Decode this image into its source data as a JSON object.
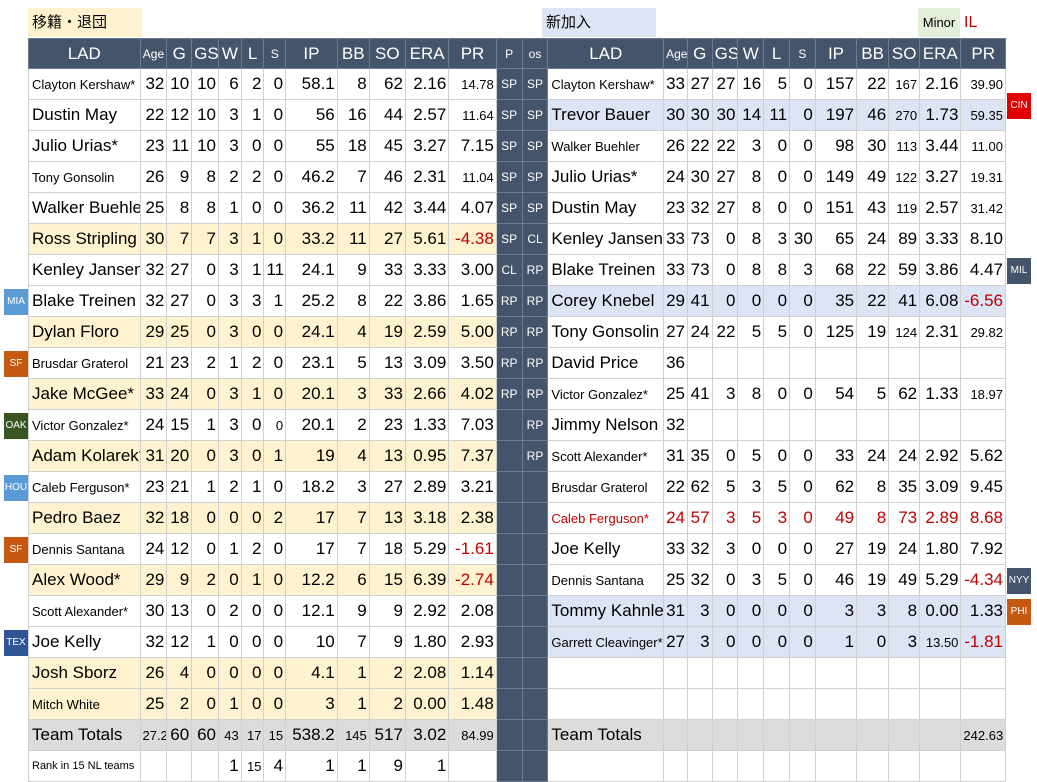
{
  "labels": {
    "left": "移籍・退団",
    "right": "新加入",
    "minor": "Minor",
    "il": "IL"
  },
  "columns": {
    "left": [
      "LAD",
      "Age",
      "G",
      "GS",
      "W",
      "L",
      "S",
      "IP",
      "BB",
      "SO",
      "ERA",
      "PR"
    ],
    "mid": [
      "P",
      "os"
    ],
    "right": [
      "LAD",
      "Age",
      "G",
      "GS",
      "W",
      "L",
      "S",
      "IP",
      "BB",
      "SO",
      "ERA",
      "PR"
    ]
  },
  "rows": [
    {
      "p": "SP",
      "os": "SP",
      "L": [
        "Clayton Kershaw*",
        "32",
        "10",
        "10",
        "6",
        "2",
        "0",
        "58.1",
        "8",
        "62",
        "2.16",
        "14.78"
      ],
      "R": [
        "Clayton Kershaw*",
        "33",
        "27",
        "27",
        "16",
        "5",
        "0",
        "157",
        "22",
        "167",
        "2.16",
        "39.90"
      ]
    },
    {
      "p": "SP",
      "os": "SP",
      "L": [
        "Dustin May",
        "22",
        "12",
        "10",
        "3",
        "1",
        "0",
        "56",
        "16",
        "44",
        "2.57",
        "11.64"
      ],
      "R": [
        "Trevor Bauer",
        "30",
        "30",
        "30",
        "14",
        "11",
        "0",
        "197",
        "46",
        "270",
        "1.73",
        "59.35"
      ]
    },
    {
      "p": "SP",
      "os": "SP",
      "L": [
        "Julio Urias*",
        "23",
        "11",
        "10",
        "3",
        "0",
        "0",
        "55",
        "18",
        "45",
        "3.27",
        "7.15"
      ],
      "R": [
        "Walker Buehler",
        "26",
        "22",
        "22",
        "3",
        "0",
        "0",
        "98",
        "30",
        "113",
        "3.44",
        "11.00"
      ]
    },
    {
      "p": "SP",
      "os": "SP",
      "L": [
        "Tony Gonsolin",
        "26",
        "9",
        "8",
        "2",
        "2",
        "0",
        "46.2",
        "7",
        "46",
        "2.31",
        "11.04"
      ],
      "R": [
        "Julio Urias*",
        "24",
        "30",
        "27",
        "8",
        "0",
        "0",
        "149",
        "49",
        "122",
        "3.27",
        "19.31"
      ]
    },
    {
      "p": "SP",
      "os": "SP",
      "L": [
        "Walker Buehler",
        "25",
        "8",
        "8",
        "1",
        "0",
        "0",
        "36.2",
        "11",
        "42",
        "3.44",
        "4.07"
      ],
      "R": [
        "Dustin May",
        "23",
        "32",
        "27",
        "8",
        "0",
        "0",
        "151",
        "43",
        "119",
        "2.57",
        "31.42"
      ]
    },
    {
      "p": "SP",
      "os": "CL",
      "L": [
        "Ross Stripling",
        "30",
        "7",
        "7",
        "3",
        "1",
        "0",
        "33.2",
        "11",
        "27",
        "5.61",
        "-4.38"
      ],
      "R": [
        "Kenley Jansen",
        "33",
        "73",
        "0",
        "8",
        "3",
        "30",
        "65",
        "24",
        "89",
        "3.33",
        "8.10"
      ]
    },
    {
      "p": "CL",
      "os": "RP",
      "L": [
        "Kenley Jansen",
        "32",
        "27",
        "0",
        "3",
        "1",
        "11",
        "24.1",
        "9",
        "33",
        "3.33",
        "3.00"
      ],
      "R": [
        "Blake Treinen",
        "33",
        "73",
        "0",
        "8",
        "8",
        "3",
        "68",
        "22",
        "59",
        "3.86",
        "4.47"
      ]
    },
    {
      "p": "RP",
      "os": "RP",
      "L": [
        "Blake Treinen",
        "32",
        "27",
        "0",
        "3",
        "3",
        "1",
        "25.2",
        "8",
        "22",
        "3.86",
        "1.65"
      ],
      "R": [
        "Corey Knebel",
        "29",
        "41",
        "0",
        "0",
        "0",
        "0",
        "35",
        "22",
        "41",
        "6.08",
        "-6.56"
      ]
    },
    {
      "p": "RP",
      "os": "RP",
      "L": [
        "Dylan Floro",
        "29",
        "25",
        "0",
        "3",
        "0",
        "0",
        "24.1",
        "4",
        "19",
        "2.59",
        "5.00"
      ],
      "R": [
        "Tony Gonsolin",
        "27",
        "24",
        "22",
        "5",
        "5",
        "0",
        "125",
        "19",
        "124",
        "2.31",
        "29.82"
      ]
    },
    {
      "p": "RP",
      "os": "RP",
      "L": [
        "Brusdar Graterol",
        "21",
        "23",
        "2",
        "1",
        "2",
        "0",
        "23.1",
        "5",
        "13",
        "3.09",
        "3.50"
      ],
      "R": [
        "David Price",
        "36",
        "",
        "",
        "",
        "",
        "",
        "",
        "",
        "",
        "",
        ""
      ]
    },
    {
      "p": "RP",
      "os": "RP",
      "L": [
        "Jake McGee*",
        "33",
        "24",
        "0",
        "3",
        "1",
        "0",
        "20.1",
        "3",
        "33",
        "2.66",
        "4.02"
      ],
      "R": [
        "Victor Gonzalez*",
        "25",
        "41",
        "3",
        "8",
        "0",
        "0",
        "54",
        "5",
        "62",
        "1.33",
        "18.97"
      ]
    },
    {
      "p": "",
      "os": "RP",
      "L": [
        "Victor Gonzalez*",
        "24",
        "15",
        "1",
        "3",
        "0",
        "0",
        "20.1",
        "2",
        "23",
        "1.33",
        "7.03"
      ],
      "R": [
        "Jimmy Nelson",
        "32",
        "",
        "",
        "",
        "",
        "",
        "",
        "",
        "",
        "",
        ""
      ]
    },
    {
      "p": "",
      "os": "RP",
      "L": [
        "Adam Kolarek*",
        "31",
        "20",
        "0",
        "3",
        "0",
        "1",
        "19",
        "4",
        "13",
        "0.95",
        "7.37"
      ],
      "R": [
        "Scott Alexander*",
        "31",
        "35",
        "0",
        "5",
        "0",
        "0",
        "33",
        "24",
        "24",
        "2.92",
        "5.62"
      ]
    },
    {
      "p": "",
      "os": "",
      "L": [
        "Caleb Ferguson*",
        "23",
        "21",
        "1",
        "2",
        "1",
        "0",
        "18.2",
        "3",
        "27",
        "2.89",
        "3.21"
      ],
      "R": [
        "Brusdar Graterol",
        "22",
        "62",
        "5",
        "3",
        "5",
        "0",
        "62",
        "8",
        "35",
        "3.09",
        "9.45"
      ]
    },
    {
      "p": "",
      "os": "",
      "L": [
        "Pedro Baez",
        "32",
        "18",
        "0",
        "0",
        "0",
        "2",
        "17",
        "7",
        "13",
        "3.18",
        "2.38"
      ],
      "R": [
        "Caleb Ferguson*",
        "24",
        "57",
        "3",
        "5",
        "3",
        "0",
        "49",
        "8",
        "73",
        "2.89",
        "8.68"
      ]
    },
    {
      "p": "",
      "os": "",
      "L": [
        "Dennis Santana",
        "24",
        "12",
        "0",
        "1",
        "2",
        "0",
        "17",
        "7",
        "18",
        "5.29",
        "-1.61"
      ],
      "R": [
        "Joe Kelly",
        "33",
        "32",
        "3",
        "0",
        "0",
        "0",
        "27",
        "19",
        "24",
        "1.80",
        "7.92"
      ]
    },
    {
      "p": "",
      "os": "",
      "L": [
        "Alex Wood*",
        "29",
        "9",
        "2",
        "0",
        "1",
        "0",
        "12.2",
        "6",
        "15",
        "6.39",
        "-2.74"
      ],
      "R": [
        "Dennis Santana",
        "25",
        "32",
        "0",
        "3",
        "5",
        "0",
        "46",
        "19",
        "49",
        "5.29",
        "-4.34"
      ]
    },
    {
      "p": "",
      "os": "",
      "L": [
        "Scott Alexander*",
        "30",
        "13",
        "0",
        "2",
        "0",
        "0",
        "12.1",
        "9",
        "9",
        "2.92",
        "2.08"
      ],
      "R": [
        "Tommy Kahnle",
        "31",
        "3",
        "0",
        "0",
        "0",
        "0",
        "3",
        "3",
        "8",
        "0.00",
        "1.33"
      ]
    },
    {
      "p": "",
      "os": "",
      "L": [
        "Joe Kelly",
        "32",
        "12",
        "1",
        "0",
        "0",
        "0",
        "10",
        "7",
        "9",
        "1.80",
        "2.93"
      ],
      "R": [
        "Garrett Cleavinger*",
        "27",
        "3",
        "0",
        "0",
        "0",
        "0",
        "1",
        "0",
        "3",
        "13.50",
        "-1.81"
      ]
    },
    {
      "p": "",
      "os": "",
      "L": [
        "Josh Sborz",
        "26",
        "4",
        "0",
        "0",
        "0",
        "0",
        "4.1",
        "1",
        "2",
        "2.08",
        "1.14"
      ],
      "R": [
        "",
        "",
        "",
        "",
        "",
        "",
        "",
        "",
        "",
        "",
        "",
        ""
      ]
    },
    {
      "p": "",
      "os": "",
      "L": [
        "Mitch White",
        "25",
        "2",
        "0",
        "1",
        "0",
        "0",
        "3",
        "1",
        "2",
        "0.00",
        "1.48"
      ],
      "R": [
        "",
        "",
        "",
        "",
        "",
        "",
        "",
        "",
        "",
        "",
        "",
        ""
      ]
    }
  ],
  "totals": {
    "L": [
      "Team Totals",
      "27.2",
      "60",
      "60",
      "43",
      "17",
      "15",
      "538.2",
      "145",
      "517",
      "3.02",
      "84.99"
    ],
    "R": [
      "Team Totals",
      "",
      "",
      "",
      "",
      "",
      "",
      "",
      "",
      "",
      "",
      "242.63"
    ]
  },
  "rank": {
    "L": [
      "Rank in 15 NL teams",
      "",
      "",
      "",
      "1",
      "15",
      "4",
      "1",
      "1",
      "9",
      "1",
      ""
    ]
  },
  "side_tags": [
    {
      "text": "CIN",
      "color": "#e00000"
    },
    {
      "text": "MIL",
      "color": "#44546a"
    },
    {
      "text": "MIA",
      "color": "#5b9bd5"
    },
    {
      "text": "SF",
      "color": "#c65911"
    },
    {
      "text": "OAK",
      "color": "#375623"
    },
    {
      "text": "HOU",
      "color": "#5b9bd5"
    },
    {
      "text": "SF",
      "color": "#c65911"
    },
    {
      "text": "NYY",
      "color": "#44546a"
    },
    {
      "text": "PHI",
      "color": "#c65911"
    },
    {
      "text": "TEX",
      "color": "#2f5597"
    }
  ]
}
